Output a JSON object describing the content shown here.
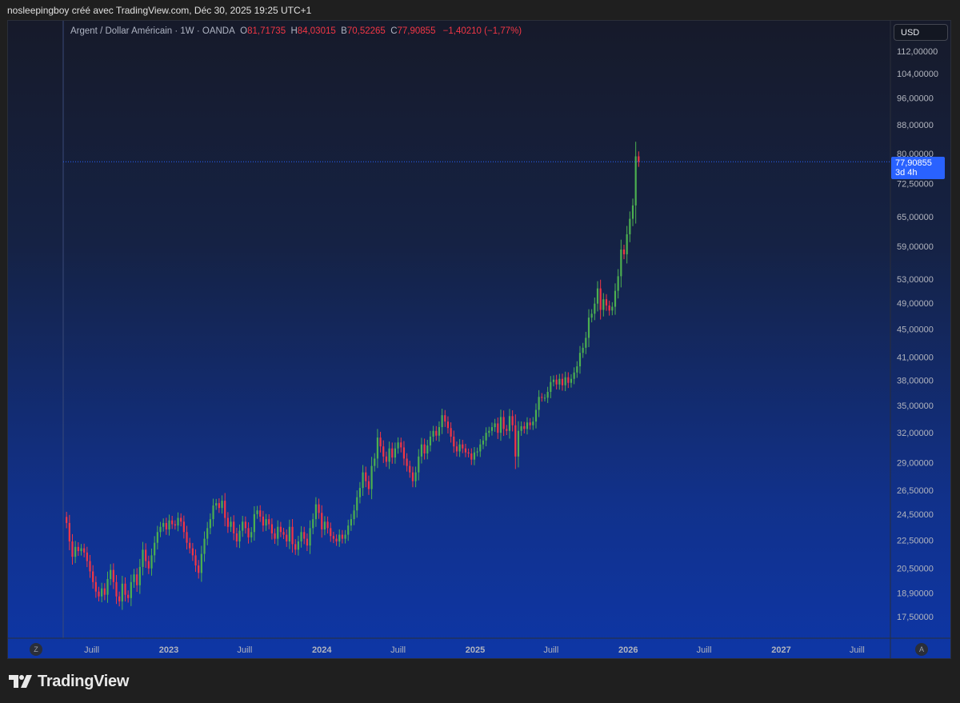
{
  "caption": "nosleepingboy créé avec TradingView.com, Déc 30, 2025 19:25 UTC+1",
  "legend": {
    "symbol": "Argent / Dollar Américain · 1W · OANDA",
    "open_label": "O",
    "open": "81,71735",
    "high_label": "H",
    "high": "84,03015",
    "low_label": "B",
    "low": "70,52265",
    "close_label": "C",
    "close": "77,90855",
    "change": "−1,40210 (−1,77%)"
  },
  "currency": "USD",
  "price_tag": {
    "price": "77,90855",
    "countdown": "3d 4h"
  },
  "axis_buttons": {
    "left": "Z",
    "right": "A"
  },
  "footer": {
    "brand": "TradingView"
  },
  "colors": {
    "up": "#4caf50",
    "down": "#f23645",
    "accent": "#2962ff"
  },
  "chart_data": {
    "type": "candlestick",
    "scale": "log",
    "y_ticks": [
      {
        "value": 112,
        "label": "112,00000"
      },
      {
        "value": 104,
        "label": "104,00000"
      },
      {
        "value": 96,
        "label": "96,00000"
      },
      {
        "value": 88,
        "label": "88,00000"
      },
      {
        "value": 80,
        "label": "80,00000"
      },
      {
        "value": 72.5,
        "label": "72,50000"
      },
      {
        "value": 65,
        "label": "65,00000"
      },
      {
        "value": 59,
        "label": "59,00000"
      },
      {
        "value": 53,
        "label": "53,00000"
      },
      {
        "value": 49,
        "label": "49,00000"
      },
      {
        "value": 45,
        "label": "45,00000"
      },
      {
        "value": 41,
        "label": "41,00000"
      },
      {
        "value": 38,
        "label": "38,00000"
      },
      {
        "value": 35,
        "label": "35,00000"
      },
      {
        "value": 32,
        "label": "32,00000"
      },
      {
        "value": 29,
        "label": "29,00000"
      },
      {
        "value": 26.5,
        "label": "26,50000"
      },
      {
        "value": 24.5,
        "label": "24,50000"
      },
      {
        "value": 22.5,
        "label": "22,50000"
      },
      {
        "value": 20.5,
        "label": "20,50000"
      },
      {
        "value": 18.9,
        "label": "18,90000"
      },
      {
        "value": 17.5,
        "label": "17,50000"
      }
    ],
    "x_ticks": [
      {
        "date": "2022-07-01",
        "label": "Juill",
        "bold": false
      },
      {
        "date": "2023-01-01",
        "label": "2023",
        "bold": true
      },
      {
        "date": "2023-07-01",
        "label": "Juill",
        "bold": false
      },
      {
        "date": "2024-01-01",
        "label": "2024",
        "bold": true
      },
      {
        "date": "2024-07-01",
        "label": "Juill",
        "bold": false
      },
      {
        "date": "2025-01-01",
        "label": "2025",
        "bold": true
      },
      {
        "date": "2025-07-01",
        "label": "Juill",
        "bold": false
      },
      {
        "date": "2026-01-01",
        "label": "2026",
        "bold": true
      },
      {
        "date": "2026-07-01",
        "label": "Juill",
        "bold": false
      },
      {
        "date": "2027-01-01",
        "label": "2027",
        "bold": true
      },
      {
        "date": "2027-07-01",
        "label": "Juill",
        "bold": false
      }
    ],
    "first_candle_date": "2022-05-02",
    "last_price": 77.90855,
    "closes": [
      23.8,
      22.4,
      21.3,
      22.0,
      21.7,
      21.9,
      21.6,
      21.0,
      20.3,
      19.6,
      19.0,
      18.7,
      19.2,
      18.8,
      19.8,
      20.4,
      19.6,
      18.7,
      18.4,
      19.5,
      18.8,
      18.6,
      19.6,
      20.1,
      19.4,
      20.6,
      21.8,
      21.0,
      20.5,
      21.4,
      22.3,
      23.1,
      23.5,
      23.8,
      23.3,
      24.0,
      23.7,
      23.6,
      24.2,
      23.9,
      23.1,
      22.3,
      21.9,
      21.4,
      20.7,
      20.2,
      21.5,
      22.6,
      23.4,
      24.1,
      25.2,
      25.4,
      25.0,
      25.6,
      24.2,
      23.5,
      23.9,
      23.0,
      22.4,
      23.2,
      23.9,
      23.4,
      22.7,
      23.1,
      24.5,
      24.8,
      24.3,
      23.6,
      24.1,
      23.7,
      23.0,
      22.6,
      23.5,
      23.1,
      22.9,
      22.4,
      23.5,
      22.2,
      21.8,
      22.4,
      23.1,
      22.6,
      22.1,
      23.4,
      24.1,
      25.3,
      24.6,
      23.3,
      23.9,
      23.4,
      22.8,
      22.6,
      22.4,
      22.9,
      22.6,
      22.9,
      23.6,
      24.1,
      24.8,
      25.9,
      26.7,
      28.1,
      27.3,
      26.6,
      28.7,
      29.4,
      31.5,
      30.6,
      29.6,
      29.1,
      30.4,
      29.5,
      30.4,
      31.0,
      30.5,
      29.4,
      28.7,
      28.1,
      27.3,
      28.1,
      29.6,
      30.8,
      29.9,
      30.7,
      31.6,
      32.2,
      31.7,
      32.6,
      33.9,
      33.2,
      32.5,
      31.6,
      30.6,
      30.1,
      30.8,
      30.4,
      30.0,
      29.9,
      29.3,
      30.0,
      30.1,
      30.8,
      31.2,
      32.0,
      32.2,
      32.6,
      33.0,
      32.0,
      33.7,
      32.4,
      32.2,
      33.8,
      32.8,
      29.6,
      32.2,
      32.7,
      32.4,
      33.1,
      32.8,
      33.2,
      34.5,
      36.0,
      35.9,
      35.9,
      36.6,
      37.8,
      38.1,
      37.5,
      38.2,
      37.4,
      38.4,
      37.7,
      38.2,
      39.0,
      39.8,
      41.6,
      42.3,
      43.7,
      46.7,
      47.3,
      48.9,
      51.4,
      47.9,
      49.6,
      48.6,
      47.8,
      48.4,
      51.0,
      53.5,
      58.4,
      57.5,
      61.4,
      64.6,
      67.5,
      79.3,
      77.90855
    ]
  }
}
